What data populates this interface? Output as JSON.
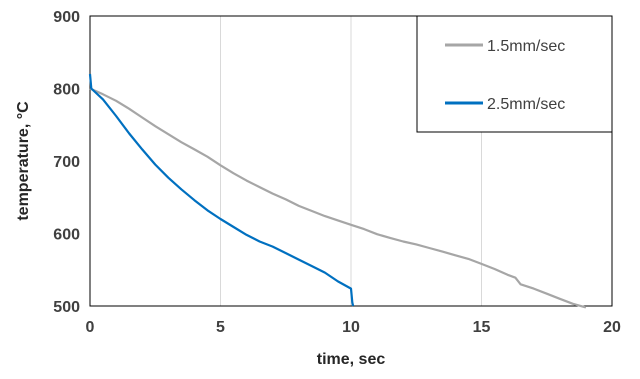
{
  "chart_data": {
    "type": "line",
    "xlabel": "time, sec",
    "ylabel": "temperature, °C",
    "xlim": [
      0,
      20
    ],
    "ylim": [
      500,
      900
    ],
    "xticks": [
      0,
      5,
      10,
      15,
      20
    ],
    "yticks": [
      500,
      600,
      700,
      800,
      900
    ],
    "grid": "vertical",
    "legend_position": "top-right",
    "series": [
      {
        "name": "1.5mm/sec",
        "color": "#a6a6a6",
        "points": [
          [
            0,
            800
          ],
          [
            0.5,
            792
          ],
          [
            1,
            783
          ],
          [
            1.5,
            772
          ],
          [
            2,
            760
          ],
          [
            2.5,
            748
          ],
          [
            3,
            737
          ],
          [
            3.5,
            726
          ],
          [
            4,
            716
          ],
          [
            4.5,
            706
          ],
          [
            5,
            694
          ],
          [
            5.5,
            683
          ],
          [
            6,
            673
          ],
          [
            6.5,
            664
          ],
          [
            7,
            655
          ],
          [
            7.5,
            647
          ],
          [
            8,
            638
          ],
          [
            8.5,
            631
          ],
          [
            9,
            624
          ],
          [
            9.5,
            618
          ],
          [
            10,
            612
          ],
          [
            10.5,
            606
          ],
          [
            11,
            599
          ],
          [
            11.5,
            594
          ],
          [
            12,
            589
          ],
          [
            12.5,
            585
          ],
          [
            13,
            580
          ],
          [
            13.5,
            575
          ],
          [
            14,
            570
          ],
          [
            14.5,
            565
          ],
          [
            15,
            558
          ],
          [
            15.5,
            551
          ],
          [
            16,
            543
          ],
          [
            16.3,
            539
          ],
          [
            16.5,
            530
          ],
          [
            17,
            524
          ],
          [
            17.5,
            517
          ],
          [
            18,
            510
          ],
          [
            18.5,
            503
          ],
          [
            19,
            498
          ]
        ]
      },
      {
        "name": "2.5mm/sec",
        "color": "#0070c0",
        "points": [
          [
            0,
            820
          ],
          [
            0.05,
            800
          ],
          [
            0.5,
            785
          ],
          [
            1,
            762
          ],
          [
            1.5,
            738
          ],
          [
            2,
            716
          ],
          [
            2.5,
            695
          ],
          [
            3,
            677
          ],
          [
            3.5,
            661
          ],
          [
            4,
            646
          ],
          [
            4.5,
            632
          ],
          [
            5,
            620
          ],
          [
            5.5,
            609
          ],
          [
            6,
            598
          ],
          [
            6.5,
            589
          ],
          [
            7,
            582
          ],
          [
            7.5,
            573
          ],
          [
            8,
            564
          ],
          [
            8.5,
            555
          ],
          [
            9,
            546
          ],
          [
            9.5,
            534
          ],
          [
            10,
            524
          ],
          [
            10.05,
            505
          ],
          [
            10.08,
            500
          ]
        ]
      }
    ]
  }
}
